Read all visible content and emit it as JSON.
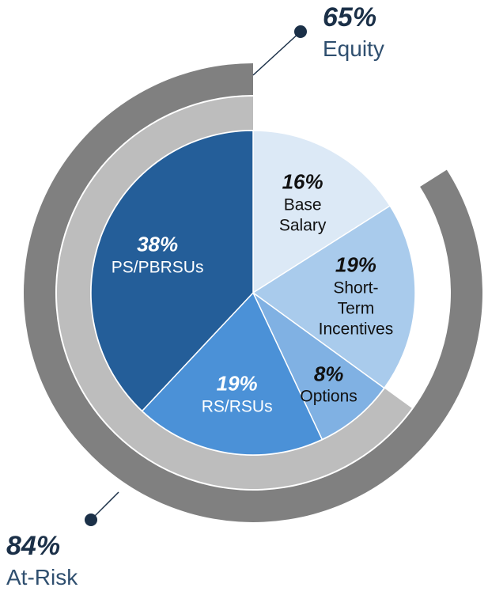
{
  "chart_data": {
    "type": "pie",
    "categories": [
      "Base Salary",
      "Short-Term Incentives",
      "Options",
      "RS/RSUs",
      "PS/PBRSUs"
    ],
    "values": [
      16,
      19,
      8,
      19,
      38
    ],
    "value_labels": [
      "16%",
      "19%",
      "8%",
      "19%",
      "38%"
    ],
    "colors": [
      "#dce9f6",
      "#a9cbec",
      "#80b1e3",
      "#4b91d7",
      "#245e99"
    ],
    "rings": [
      {
        "name": "Equity",
        "color": "#bdbdbd",
        "values": [
          65
        ],
        "value_labels": [
          "65%"
        ]
      },
      {
        "name": "At-Risk",
        "color": "#808080",
        "values": [
          84
        ],
        "value_labels": [
          "84%"
        ]
      }
    ]
  }
}
